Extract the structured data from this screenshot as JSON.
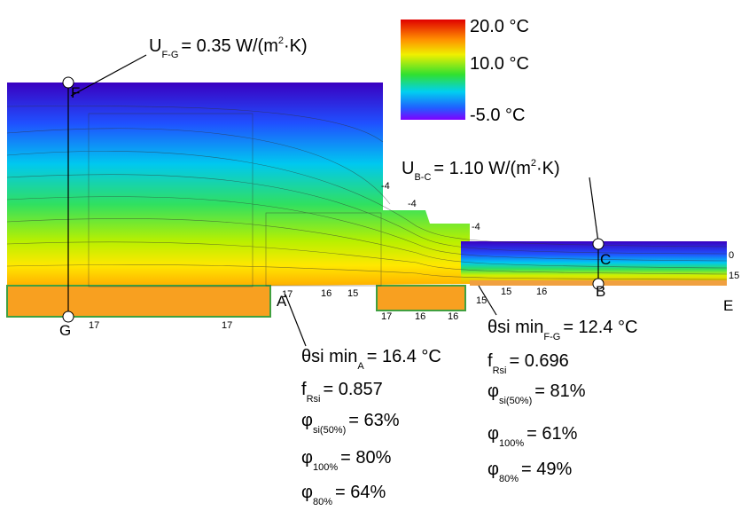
{
  "legend": {
    "labels": [
      "20.0 °C",
      "10.0 °C",
      "-5.0 °C"
    ]
  },
  "u_values": [
    {
      "symbol": "U",
      "subscript": "F-G",
      "text": "= 0.35 W/(m",
      "superscript": "2",
      "suffix": "·K)"
    },
    {
      "symbol": "U",
      "subscript": "B-C",
      "text": "= 1.10 W/(m",
      "superscript": "2",
      "suffix": "·K)"
    }
  ],
  "points": [
    "F",
    "G",
    "C",
    "B",
    "E",
    "A"
  ],
  "isotherm_labels": [
    "-4",
    "-4",
    "-4",
    "0",
    "15",
    "17",
    "17",
    "17",
    "16",
    "15",
    "17",
    "16",
    "16",
    "15",
    "15",
    "16"
  ],
  "results_a": [
    {
      "main": "θsi min",
      "sub": "A",
      "rest": "= 16.4 °C"
    },
    {
      "main": "f",
      "sub": "Rsi",
      "rest": "= 0.857"
    },
    {
      "main": "φ",
      "sub": "si(50%)",
      "rest": "= 63%"
    },
    {
      "main": "φ",
      "sub": "100%",
      "rest": "= 80%"
    },
    {
      "main": "φ",
      "sub": "80%",
      "rest": "= 64%"
    }
  ],
  "results_fg": [
    {
      "main": "θsi min",
      "sub": "F-G",
      "rest": "= 12.4 °C"
    },
    {
      "main": "f",
      "sub": "Rsi",
      "rest": "= 0.696"
    },
    {
      "main": "φ",
      "sub": "si(50%)",
      "rest": "= 81%"
    },
    {
      "main": "φ",
      "sub": "100%",
      "rest": "= 61%"
    },
    {
      "main": "φ",
      "sub": "80%",
      "rest": "= 49%"
    }
  ]
}
